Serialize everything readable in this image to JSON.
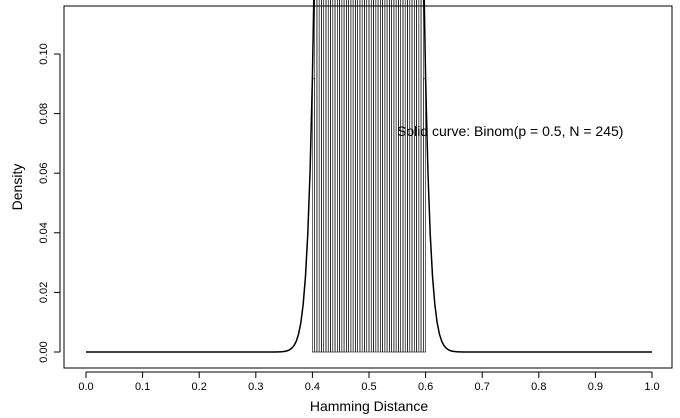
{
  "chart_data": {
    "type": "bar",
    "xlabel": "Hamming Distance",
    "ylabel": "Density",
    "xlim": [
      0,
      1
    ],
    "ylim": [
      0,
      0.11
    ],
    "x_ticks": [
      "0.0",
      "0.1",
      "0.2",
      "0.3",
      "0.4",
      "0.5",
      "0.6",
      "0.7",
      "0.8",
      "0.9",
      "1.0"
    ],
    "y_ticks": [
      "0.00",
      "0.02",
      "0.04",
      "0.06",
      "0.08",
      "0.10"
    ],
    "grid": false,
    "annotation": "Solid curve:  Binom(p = 0.5, N = 245)",
    "binom": {
      "p": 0.5,
      "N": 245
    },
    "histogram": {
      "bin_start": 0.4,
      "bin_end": 0.6,
      "bin_width": 0.004
    },
    "series": [
      {
        "kind": "histogram"
      },
      {
        "kind": "curve"
      }
    ]
  }
}
